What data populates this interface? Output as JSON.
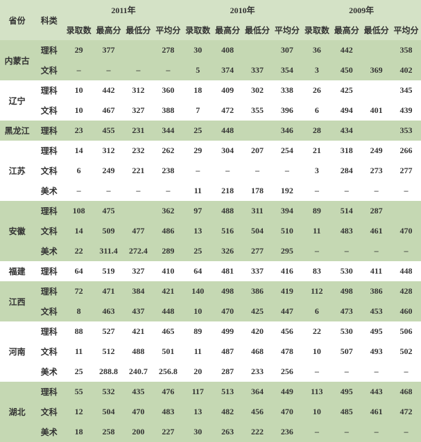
{
  "header": {
    "province": "省份",
    "subject": "科类",
    "years": [
      "2011年",
      "2010年",
      "2009年"
    ],
    "metrics": [
      "录取数",
      "最高分",
      "最低分",
      "平均分"
    ]
  },
  "provinces": [
    {
      "name": "内蒙古",
      "rows": [
        {
          "subj": "理科",
          "y": [
            [
              "29",
              "377",
              "",
              "278"
            ],
            [
              "30",
              "408",
              "",
              "307"
            ],
            [
              "36",
              "442",
              "",
              "358"
            ]
          ]
        },
        {
          "subj": "文科",
          "y": [
            [
              "–",
              "–",
              "–",
              "–"
            ],
            [
              "5",
              "374",
              "337",
              "354"
            ],
            [
              "3",
              "450",
              "369",
              "402"
            ]
          ]
        }
      ]
    },
    {
      "name": "辽宁",
      "rows": [
        {
          "subj": "理科",
          "y": [
            [
              "10",
              "442",
              "312",
              "360"
            ],
            [
              "18",
              "409",
              "302",
              "338"
            ],
            [
              "26",
              "425",
              "",
              "345"
            ]
          ]
        },
        {
          "subj": "文科",
          "y": [
            [
              "10",
              "467",
              "327",
              "388"
            ],
            [
              "7",
              "472",
              "355",
              "396"
            ],
            [
              "6",
              "494",
              "401",
              "439"
            ]
          ]
        }
      ]
    },
    {
      "name": "黑龙江",
      "rows": [
        {
          "subj": "理科",
          "y": [
            [
              "23",
              "455",
              "231",
              "344"
            ],
            [
              "25",
              "448",
              "",
              "346"
            ],
            [
              "28",
              "434",
              "",
              "353"
            ]
          ]
        }
      ]
    },
    {
      "name": "江苏",
      "rows": [
        {
          "subj": "理科",
          "y": [
            [
              "14",
              "312",
              "232",
              "262"
            ],
            [
              "29",
              "304",
              "207",
              "254"
            ],
            [
              "21",
              "318",
              "249",
              "266"
            ]
          ]
        },
        {
          "subj": "文科",
          "y": [
            [
              "6",
              "249",
              "221",
              "238"
            ],
            [
              "–",
              "–",
              "–",
              "–"
            ],
            [
              "3",
              "284",
              "273",
              "277"
            ]
          ]
        },
        {
          "subj": "美术",
          "y": [
            [
              "–",
              "–",
              "–",
              "–"
            ],
            [
              "11",
              "218",
              "178",
              "192"
            ],
            [
              "–",
              "–",
              "–",
              "–"
            ]
          ]
        }
      ]
    },
    {
      "name": "安徽",
      "rows": [
        {
          "subj": "理科",
          "y": [
            [
              "108",
              "475",
              "",
              "362"
            ],
            [
              "97",
              "488",
              "311",
              "394"
            ],
            [
              "89",
              "514",
              "287",
              ""
            ]
          ]
        },
        {
          "subj": "文科",
          "y": [
            [
              "14",
              "509",
              "477",
              "486"
            ],
            [
              "13",
              "516",
              "504",
              "510"
            ],
            [
              "11",
              "483",
              "461",
              "470"
            ]
          ]
        },
        {
          "subj": "美术",
          "y": [
            [
              "22",
              "311.4",
              "272.4",
              "289"
            ],
            [
              "25",
              "326",
              "277",
              "295"
            ],
            [
              "–",
              "–",
              "–",
              "–"
            ]
          ]
        }
      ]
    },
    {
      "name": "福建",
      "rows": [
        {
          "subj": "理科",
          "y": [
            [
              "64",
              "519",
              "327",
              "410"
            ],
            [
              "64",
              "481",
              "337",
              "416"
            ],
            [
              "83",
              "530",
              "411",
              "448"
            ]
          ]
        }
      ]
    },
    {
      "name": "江西",
      "rows": [
        {
          "subj": "理科",
          "y": [
            [
              "72",
              "471",
              "384",
              "421"
            ],
            [
              "140",
              "498",
              "386",
              "419"
            ],
            [
              "112",
              "498",
              "386",
              "428"
            ]
          ]
        },
        {
          "subj": "文科",
          "y": [
            [
              "8",
              "463",
              "437",
              "448"
            ],
            [
              "10",
              "470",
              "425",
              "447"
            ],
            [
              "6",
              "473",
              "453",
              "460"
            ]
          ]
        }
      ]
    },
    {
      "name": "河南",
      "rows": [
        {
          "subj": "理科",
          "y": [
            [
              "88",
              "527",
              "421",
              "465"
            ],
            [
              "89",
              "499",
              "420",
              "456"
            ],
            [
              "22",
              "530",
              "495",
              "506"
            ]
          ]
        },
        {
          "subj": "文科",
          "y": [
            [
              "11",
              "512",
              "488",
              "501"
            ],
            [
              "11",
              "487",
              "468",
              "478"
            ],
            [
              "10",
              "507",
              "493",
              "502"
            ]
          ]
        },
        {
          "subj": "美术",
          "y": [
            [
              "25",
              "288.8",
              "240.7",
              "256.8"
            ],
            [
              "20",
              "287",
              "233",
              "256"
            ],
            [
              "–",
              "–",
              "–",
              "–"
            ]
          ]
        }
      ]
    },
    {
      "name": "湖北",
      "rows": [
        {
          "subj": "理科",
          "y": [
            [
              "55",
              "532",
              "435",
              "476"
            ],
            [
              "117",
              "513",
              "364",
              "449"
            ],
            [
              "113",
              "495",
              "443",
              "468"
            ]
          ]
        },
        {
          "subj": "文科",
          "y": [
            [
              "12",
              "504",
              "470",
              "483"
            ],
            [
              "13",
              "482",
              "456",
              "470"
            ],
            [
              "10",
              "485",
              "461",
              "472"
            ]
          ]
        },
        {
          "subj": "美术",
          "y": [
            [
              "18",
              "258",
              "200",
              "227"
            ],
            [
              "30",
              "263",
              "222",
              "236"
            ],
            [
              "–",
              "–",
              "–",
              "–"
            ]
          ]
        }
      ]
    }
  ]
}
